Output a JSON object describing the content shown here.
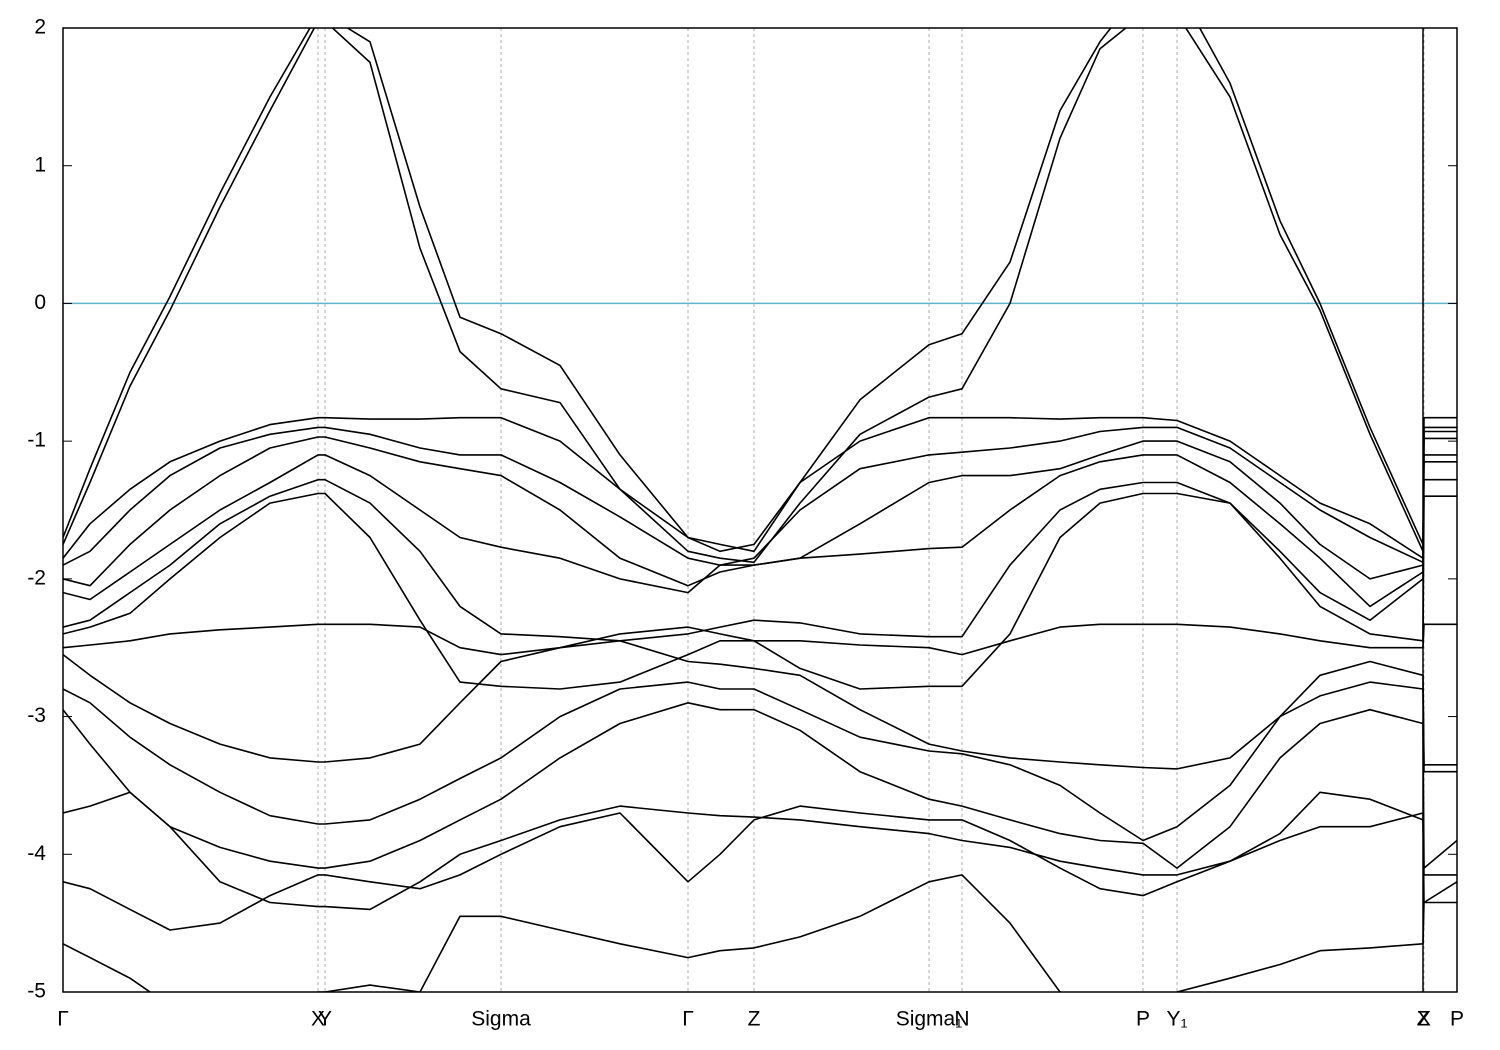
{
  "chart_data": {
    "type": "line",
    "color": "#000000",
    "reference_line": {
      "value": 0,
      "color": "#5fb4c9"
    },
    "panel_breaks": [
      5.44
    ],
    "xlim": [
      0,
      5.576
    ],
    "ylim": [
      -5,
      2
    ],
    "yticks": [
      -5,
      -4,
      -3,
      -2,
      -1,
      0,
      1,
      2
    ],
    "xticks": [
      {
        "value": 0,
        "label": "Γ"
      },
      {
        "value": 1.02,
        "label": "X"
      },
      {
        "value": 1.048,
        "label": "Y"
      },
      {
        "value": 1.752,
        "label": "Sigma"
      },
      {
        "value": 2.5,
        "label": "Γ"
      },
      {
        "value": 2.764,
        "label": "Z"
      },
      {
        "value": 3.464,
        "label": "Sigma₁"
      },
      {
        "value": 3.596,
        "label": "N"
      },
      {
        "value": 4.32,
        "label": "P"
      },
      {
        "value": 4.456,
        "label": "Y₁"
      },
      {
        "value": 5.44,
        "label": "Z"
      },
      {
        "value": 5.444,
        "label": "X"
      },
      {
        "value": 5.576,
        "label": "P"
      }
    ],
    "x": [
      0,
      0.108,
      0.268,
      0.428,
      0.628,
      0.828,
      1.02,
      1.048,
      1.228,
      1.428,
      1.588,
      1.752,
      1.988,
      2.228,
      2.5,
      2.628,
      2.764,
      2.948,
      3.188,
      3.464,
      3.596,
      3.788,
      3.988,
      4.148,
      4.32,
      4.456,
      4.668,
      4.868,
      5.028,
      5.228,
      5.44,
      5.444,
      5.576
    ],
    "series": [
      {
        "values": [
          -1.7,
          -1.2,
          -0.5,
          0.05,
          0.8,
          1.5,
          2.1,
          2.1,
          1.9,
          0.7,
          -0.1,
          -0.22,
          -0.45,
          -1.1,
          -1.7,
          -1.75,
          -1.8,
          -1.3,
          -0.7,
          -0.3,
          -0.22,
          0.3,
          1.4,
          1.9,
          2.3,
          2.3,
          1.6,
          0.6,
          0.0,
          -0.9,
          -1.75,
          -0.83,
          -0.83
        ]
      },
      {
        "values": [
          -1.75,
          -1.3,
          -0.6,
          -0.05,
          0.7,
          1.4,
          2.05,
          2.05,
          1.75,
          0.4,
          -0.35,
          -0.62,
          -0.72,
          -1.35,
          -1.8,
          -1.85,
          -1.88,
          -1.45,
          -0.95,
          -0.68,
          -0.62,
          0.0,
          1.2,
          1.85,
          2.1,
          2.1,
          1.5,
          0.5,
          -0.05,
          -0.95,
          -1.8,
          -0.9,
          -0.9
        ]
      },
      {
        "values": [
          -1.85,
          -1.6,
          -1.35,
          -1.15,
          -1.0,
          -0.88,
          -0.83,
          -0.83,
          -0.84,
          -0.84,
          -0.83,
          -0.83,
          -1.0,
          -1.35,
          -1.7,
          -1.8,
          -1.75,
          -1.3,
          -1.0,
          -0.83,
          -0.83,
          -0.83,
          -0.84,
          -0.83,
          -0.83,
          -0.85,
          -1.0,
          -1.25,
          -1.45,
          -1.6,
          -1.85,
          -0.93,
          -0.93
        ]
      },
      {
        "values": [
          -1.9,
          -1.8,
          -1.5,
          -1.25,
          -1.05,
          -0.95,
          -0.9,
          -0.9,
          -0.95,
          -1.05,
          -1.1,
          -1.1,
          -1.3,
          -1.55,
          -1.85,
          -1.9,
          -1.85,
          -1.5,
          -1.2,
          -1.1,
          -1.08,
          -1.05,
          -1.0,
          -0.93,
          -0.9,
          -0.9,
          -1.05,
          -1.3,
          -1.5,
          -1.7,
          -1.88,
          -0.98,
          -0.98
        ]
      },
      {
        "values": [
          -2.0,
          -2.05,
          -1.75,
          -1.5,
          -1.25,
          -1.05,
          -0.97,
          -0.97,
          -1.05,
          -1.15,
          -1.2,
          -1.25,
          -1.5,
          -1.85,
          -2.05,
          -1.95,
          -1.9,
          -1.85,
          -1.6,
          -1.3,
          -1.25,
          -1.25,
          -1.2,
          -1.1,
          -1.0,
          -1.0,
          -1.15,
          -1.45,
          -1.75,
          -2.0,
          -1.9,
          -1.1,
          -1.1
        ]
      },
      {
        "values": [
          -2.1,
          -2.15,
          -1.95,
          -1.75,
          -1.5,
          -1.3,
          -1.1,
          -1.1,
          -1.25,
          -1.5,
          -1.7,
          -1.77,
          -1.85,
          -2.0,
          -2.1,
          -1.9,
          -1.9,
          -1.85,
          -1.82,
          -1.78,
          -1.77,
          -1.5,
          -1.25,
          -1.15,
          -1.1,
          -1.1,
          -1.3,
          -1.6,
          -1.85,
          -2.2,
          -1.95,
          -1.15,
          -1.15
        ]
      },
      {
        "values": [
          -2.35,
          -2.3,
          -2.1,
          -1.9,
          -1.6,
          -1.4,
          -1.28,
          -1.28,
          -1.45,
          -1.8,
          -2.2,
          -2.4,
          -2.42,
          -2.45,
          -2.4,
          -2.35,
          -2.3,
          -2.32,
          -2.4,
          -2.42,
          -2.42,
          -1.9,
          -1.5,
          -1.35,
          -1.3,
          -1.3,
          -1.45,
          -1.8,
          -2.1,
          -2.3,
          -2.0,
          -1.28,
          -1.28
        ]
      },
      {
        "values": [
          -2.4,
          -2.35,
          -2.25,
          -2.0,
          -1.7,
          -1.45,
          -1.38,
          -1.38,
          -1.7,
          -2.3,
          -2.75,
          -2.78,
          -2.8,
          -2.75,
          -2.55,
          -2.45,
          -2.45,
          -2.65,
          -2.8,
          -2.78,
          -2.78,
          -2.4,
          -1.7,
          -1.45,
          -1.38,
          -1.38,
          -1.45,
          -1.85,
          -2.2,
          -2.4,
          -2.45,
          -1.4,
          -1.4
        ]
      },
      {
        "values": [
          -2.5,
          -2.48,
          -2.45,
          -2.4,
          -2.37,
          -2.35,
          -2.33,
          -2.33,
          -2.33,
          -2.35,
          -2.5,
          -2.55,
          -2.5,
          -2.4,
          -2.35,
          -2.4,
          -2.45,
          -2.45,
          -2.48,
          -2.5,
          -2.55,
          -2.45,
          -2.35,
          -2.33,
          -2.33,
          -2.33,
          -2.35,
          -2.4,
          -2.45,
          -2.5,
          -2.5,
          -2.33,
          -2.33
        ]
      },
      {
        "values": [
          -2.55,
          -2.7,
          -2.9,
          -3.05,
          -3.2,
          -3.3,
          -3.33,
          -3.33,
          -3.3,
          -3.2,
          -2.9,
          -2.6,
          -2.5,
          -2.45,
          -2.6,
          -2.62,
          -2.65,
          -2.7,
          -2.95,
          -3.2,
          -3.25,
          -3.3,
          -3.33,
          -3.35,
          -3.37,
          -3.38,
          -3.3,
          -3.0,
          -2.7,
          -2.6,
          -2.7,
          -3.35,
          -3.35
        ]
      },
      {
        "values": [
          -2.8,
          -2.9,
          -3.15,
          -3.35,
          -3.55,
          -3.72,
          -3.78,
          -3.78,
          -3.75,
          -3.6,
          -3.45,
          -3.3,
          -3.0,
          -2.8,
          -2.75,
          -2.8,
          -2.8,
          -2.95,
          -3.15,
          -3.25,
          -3.27,
          -3.35,
          -3.5,
          -3.7,
          -3.9,
          -3.8,
          -3.5,
          -3.0,
          -2.85,
          -2.75,
          -2.8,
          -3.4,
          -3.4
        ]
      },
      {
        "values": [
          -2.95,
          -3.2,
          -3.55,
          -3.8,
          -3.95,
          -4.05,
          -4.1,
          -4.1,
          -4.05,
          -3.9,
          -3.75,
          -3.6,
          -3.3,
          -3.05,
          -2.9,
          -2.95,
          -2.95,
          -3.1,
          -3.4,
          -3.6,
          -3.65,
          -3.75,
          -3.85,
          -3.9,
          -3.92,
          -4.1,
          -3.8,
          -3.3,
          -3.05,
          -2.95,
          -3.05,
          -4.1,
          -3.9
        ]
      },
      {
        "values": [
          -3.7,
          -3.65,
          -3.55,
          -3.8,
          -4.2,
          -4.35,
          -4.38,
          -4.38,
          -4.4,
          -4.2,
          -4.0,
          -3.9,
          -3.75,
          -3.65,
          -3.7,
          -3.72,
          -3.73,
          -3.75,
          -3.8,
          -3.85,
          -3.9,
          -3.95,
          -4.05,
          -4.1,
          -4.15,
          -4.15,
          -4.05,
          -3.85,
          -3.55,
          -3.6,
          -3.75,
          -4.15,
          -4.15
        ]
      },
      {
        "values": [
          -4.2,
          -4.25,
          -4.4,
          -4.55,
          -4.5,
          -4.3,
          -4.15,
          -4.15,
          -4.2,
          -4.25,
          -4.15,
          -4.0,
          -3.8,
          -3.7,
          -4.2,
          -4.0,
          -3.75,
          -3.65,
          -3.7,
          -3.75,
          -3.75,
          -3.9,
          -4.1,
          -4.25,
          -4.3,
          -4.2,
          -4.05,
          -3.9,
          -3.8,
          -3.8,
          -3.7,
          -4.35,
          -4.2
        ]
      },
      {
        "values": [
          -4.65,
          -4.75,
          -4.9,
          -5.1,
          -5.2,
          -5.2,
          -5.0,
          -5.0,
          -4.95,
          -5.0,
          -4.45,
          -4.45,
          -4.55,
          -4.65,
          -4.75,
          -4.7,
          -4.68,
          -4.6,
          -4.45,
          -4.2,
          -4.15,
          -4.5,
          -5.0,
          -5.05,
          -5.05,
          -5.0,
          -4.9,
          -4.8,
          -4.7,
          -4.68,
          -4.65,
          -4.35,
          -4.35
        ]
      }
    ]
  }
}
